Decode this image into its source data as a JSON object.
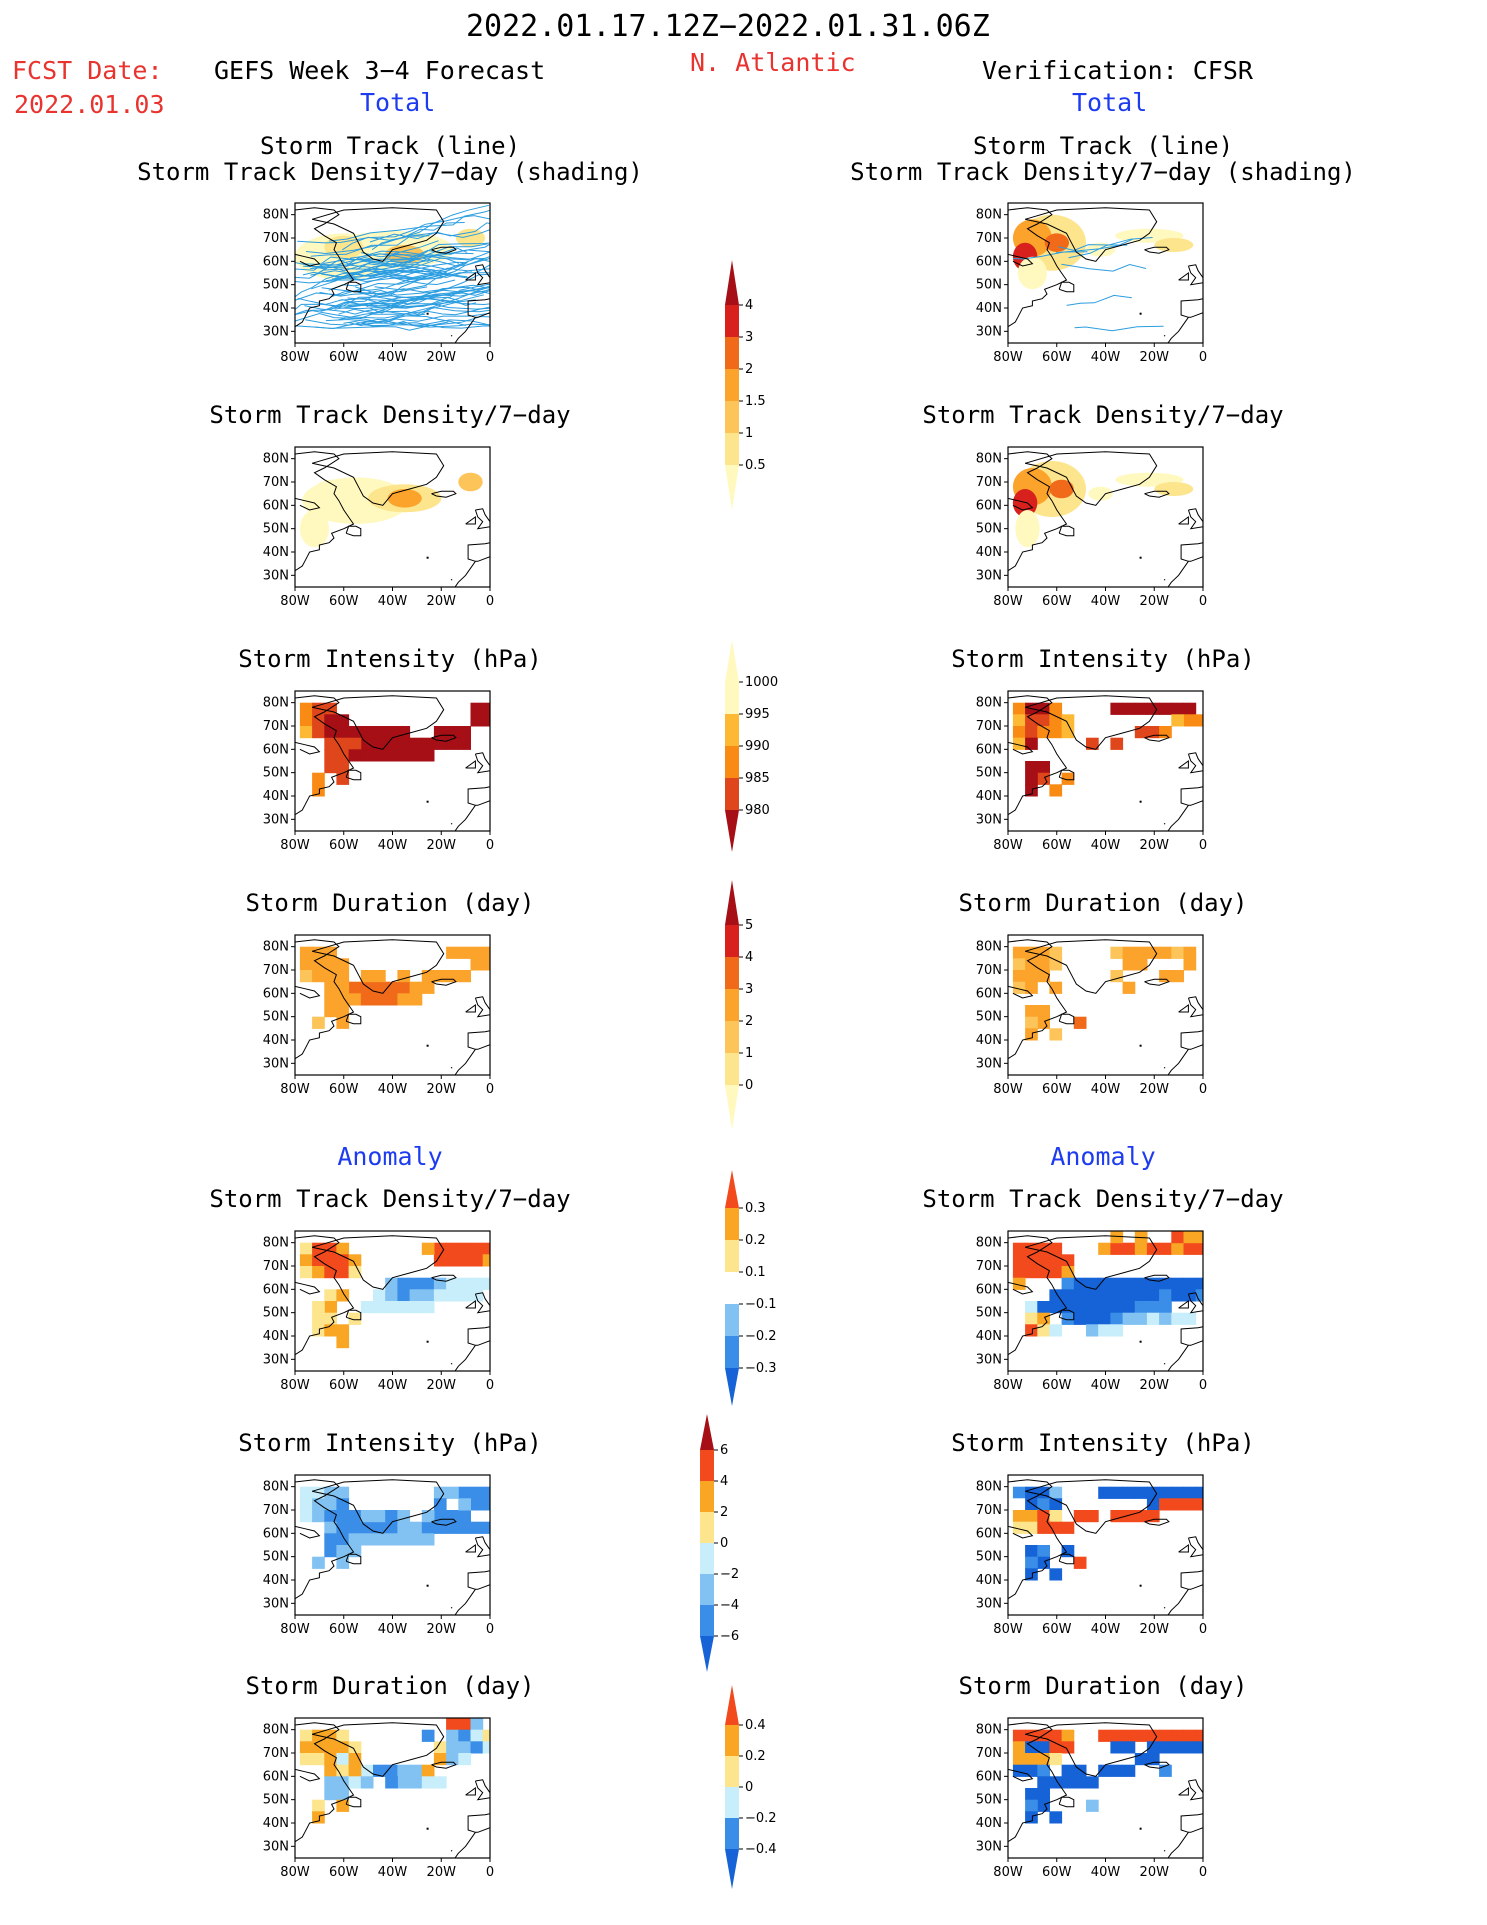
{
  "header": {
    "period": "2022.01.17.12Z−2022.01.31.06Z",
    "fcst_label": "FCST Date:",
    "fcst_date": "2022.01.03",
    "region": "N. Atlantic",
    "left_title": "GEFS Week 3−4 Forecast",
    "right_title": "Verification: CFSR",
    "left_section_total": "Total",
    "right_section_total": "Total",
    "left_section_anomaly": "Anomaly",
    "right_section_anomaly": "Anomaly"
  },
  "panel_titles": {
    "track_line": "Storm Track (line)",
    "track_density_shading": "Storm Track Density/7−day (shading)",
    "track_density": "Storm Track Density/7−day",
    "intensity": "Storm Intensity (hPa)",
    "duration": "Storm Duration (day)"
  },
  "axes": {
    "lat_ticks": [
      "80N",
      "70N",
      "60N",
      "50N",
      "40N",
      "30N"
    ],
    "lon_ticks": [
      "80W",
      "60W",
      "40W",
      "20W",
      "0"
    ]
  },
  "colors": {
    "seq_density": [
      "#fff9c0",
      "#fde58e",
      "#fdc45a",
      "#fca32c",
      "#f06a1a",
      "#d8201c",
      "#a50f15"
    ],
    "seq_intensity": [
      "#fff9c0",
      "#fdb933",
      "#f98b14",
      "#e0461b",
      "#a50f15"
    ],
    "div_anomaly": [
      "#1563d6",
      "#3a8ee8",
      "#82c2f2",
      "#c7eefa",
      "#ffffff",
      "#fde58e",
      "#f9a625",
      "#f24a1d"
    ],
    "track_line": "#2b9de0",
    "coast": "#000000"
  },
  "chart_data": [
    {
      "type": "heatmap",
      "panel": "forecast-total-track-line",
      "title": "Storm Track (line) / Storm Track Density/7−day (shading)",
      "source": "GEFS Week 3−4 Forecast",
      "xlim": [
        -80,
        0
      ],
      "ylim": [
        25,
        85
      ],
      "note": "many ensemble track lines over density shading"
    },
    {
      "type": "heatmap",
      "panel": "verification-total-track-line",
      "title": "Storm Track (line) / Storm Track Density/7−day (shading)",
      "source": "Verification: CFSR",
      "xlim": [
        -80,
        0
      ],
      "ylim": [
        25,
        85
      ]
    },
    {
      "type": "heatmap",
      "panel": "forecast-total-density",
      "title": "Storm Track Density/7−day",
      "xlim": [
        -80,
        0
      ],
      "ylim": [
        25,
        85
      ]
    },
    {
      "type": "heatmap",
      "panel": "verification-total-density",
      "title": "Storm Track Density/7−day",
      "xlim": [
        -80,
        0
      ],
      "ylim": [
        25,
        85
      ]
    },
    {
      "type": "heatmap",
      "panel": "forecast-total-intensity",
      "title": "Storm Intensity (hPa)",
      "xlim": [
        -80,
        0
      ],
      "ylim": [
        25,
        85
      ]
    },
    {
      "type": "heatmap",
      "panel": "verification-total-intensity",
      "title": "Storm Intensity (hPa)",
      "xlim": [
        -80,
        0
      ],
      "ylim": [
        25,
        85
      ]
    },
    {
      "type": "heatmap",
      "panel": "forecast-total-duration",
      "title": "Storm Duration (day)",
      "xlim": [
        -80,
        0
      ],
      "ylim": [
        25,
        85
      ]
    },
    {
      "type": "heatmap",
      "panel": "verification-total-duration",
      "title": "Storm Duration (day)",
      "xlim": [
        -80,
        0
      ],
      "ylim": [
        25,
        85
      ]
    },
    {
      "type": "heatmap",
      "panel": "forecast-anomaly-density",
      "title": "Storm Track Density/7−day",
      "xlim": [
        -80,
        0
      ],
      "ylim": [
        25,
        85
      ]
    },
    {
      "type": "heatmap",
      "panel": "verification-anomaly-density",
      "title": "Storm Track Density/7−day",
      "xlim": [
        -80,
        0
      ],
      "ylim": [
        25,
        85
      ]
    },
    {
      "type": "heatmap",
      "panel": "forecast-anomaly-intensity",
      "title": "Storm Intensity (hPa)",
      "xlim": [
        -80,
        0
      ],
      "ylim": [
        25,
        85
      ]
    },
    {
      "type": "heatmap",
      "panel": "verification-anomaly-intensity",
      "title": "Storm Intensity (hPa)",
      "xlim": [
        -80,
        0
      ],
      "ylim": [
        25,
        85
      ]
    },
    {
      "type": "heatmap",
      "panel": "forecast-anomaly-duration",
      "title": "Storm Duration (day)",
      "xlim": [
        -80,
        0
      ],
      "ylim": [
        25,
        85
      ]
    },
    {
      "type": "heatmap",
      "panel": "verification-anomaly-duration",
      "title": "Storm Duration (day)",
      "xlim": [
        -80,
        0
      ],
      "ylim": [
        25,
        85
      ]
    }
  ],
  "colorbars": [
    {
      "name": "density-total",
      "ticks": [
        "0.5",
        "1",
        "1.5",
        "2",
        "3",
        "4"
      ],
      "extend_top": true,
      "extend_bottom": true
    },
    {
      "name": "intensity-total",
      "ticks": [
        "1000",
        "995",
        "990",
        "985",
        "980"
      ],
      "extend_top": true,
      "extend_bottom": true
    },
    {
      "name": "duration-total",
      "ticks": [
        "0",
        "1",
        "2",
        "3",
        "4",
        "5"
      ],
      "extend_top": true,
      "extend_bottom": true
    },
    {
      "name": "density-anomaly",
      "ticks": [
        "0.3",
        "0.2",
        "0.1",
        "−0.1",
        "−0.2",
        "−0.3"
      ],
      "extend_top": true,
      "extend_bottom": true
    },
    {
      "name": "intensity-anomaly",
      "ticks": [
        "6",
        "4",
        "2",
        "0",
        "−2",
        "−4",
        "−6"
      ],
      "extend_top": true,
      "extend_bottom": true
    },
    {
      "name": "duration-anomaly",
      "ticks": [
        "0.4",
        "0.2",
        "0",
        "−0.2",
        "−0.4"
      ],
      "extend_top": true,
      "extend_bottom": true
    }
  ]
}
